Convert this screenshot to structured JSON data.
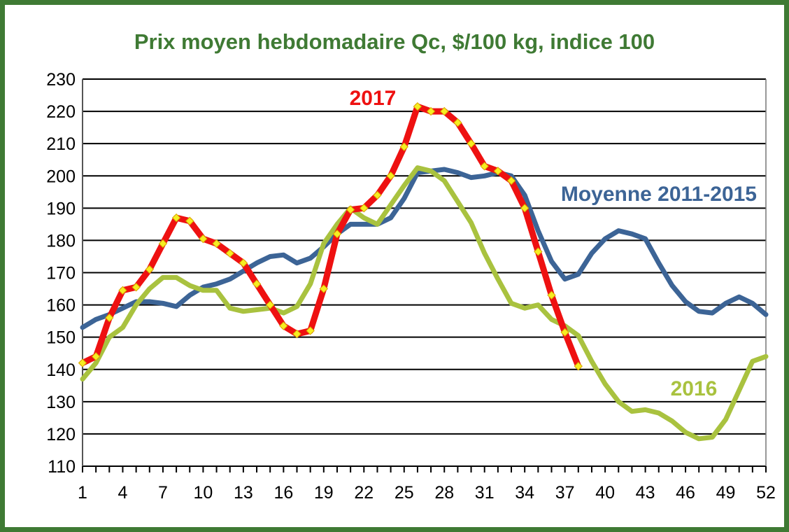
{
  "title": "Prix moyen hebdomadaire Qc, $/100 kg, indice 100",
  "colors": {
    "frame": "#3f7a34",
    "title": "#3f7a34"
  },
  "chart_data": {
    "type": "line",
    "title": "Prix moyen hebdomadaire Qc, $/100 kg, indice 100",
    "xlabel": "",
    "ylabel": "",
    "xlim": [
      1,
      52
    ],
    "ylim": [
      110,
      230
    ],
    "x_ticks": [
      1,
      4,
      7,
      10,
      13,
      16,
      19,
      22,
      25,
      28,
      31,
      34,
      37,
      40,
      43,
      46,
      49,
      52
    ],
    "y_ticks": [
      110,
      120,
      130,
      140,
      150,
      160,
      170,
      180,
      190,
      200,
      210,
      220,
      230
    ],
    "grid": "horizontal",
    "legend": "inline labels",
    "series": [
      {
        "name": "Moyenne 2011-2015",
        "color": "#3c6496",
        "marker": "none",
        "x": [
          1,
          2,
          3,
          4,
          5,
          6,
          7,
          8,
          9,
          10,
          11,
          12,
          13,
          14,
          15,
          16,
          17,
          18,
          19,
          20,
          21,
          22,
          23,
          24,
          25,
          26,
          27,
          28,
          29,
          30,
          31,
          32,
          33,
          34,
          35,
          36,
          37,
          38,
          39,
          40,
          41,
          42,
          43,
          44,
          45,
          46,
          47,
          48,
          49,
          50,
          51,
          52
        ],
        "values": [
          153,
          155.5,
          157,
          159,
          161,
          161,
          160.5,
          159.5,
          163,
          165.5,
          166.5,
          168,
          170.5,
          173,
          175,
          175.5,
          173,
          174.5,
          178,
          182,
          185,
          185,
          185,
          187,
          193,
          201,
          201.5,
          202,
          201,
          199.5,
          200,
          201,
          200,
          194,
          183,
          173.5,
          168,
          169.5,
          176,
          180.5,
          183,
          182,
          180.5,
          173,
          166,
          161,
          158,
          157.5,
          160.5,
          162.5,
          160.5,
          157
        ]
      },
      {
        "name": "2016",
        "color": "#a9c23f",
        "marker": "none",
        "x": [
          1,
          2,
          3,
          4,
          5,
          6,
          7,
          8,
          9,
          10,
          11,
          12,
          13,
          14,
          15,
          16,
          17,
          18,
          19,
          20,
          21,
          22,
          23,
          24,
          25,
          26,
          27,
          28,
          29,
          30,
          31,
          32,
          33,
          34,
          35,
          36,
          37,
          38,
          39,
          40,
          41,
          42,
          43,
          44,
          45,
          46,
          47,
          48,
          49,
          50,
          51,
          52
        ],
        "values": [
          137,
          142,
          150,
          153,
          160,
          165,
          168.5,
          168.5,
          166,
          164.5,
          164.5,
          159,
          158,
          158.5,
          159,
          157.5,
          159.5,
          166.5,
          179,
          185,
          190,
          187,
          185,
          191,
          197,
          202.5,
          201.5,
          198.5,
          192,
          185.5,
          176,
          168,
          160.5,
          159,
          160,
          155.5,
          153.5,
          150.5,
          142.5,
          135.5,
          130,
          127,
          127.5,
          126.5,
          124,
          120.5,
          118.5,
          119,
          124.5,
          133.5,
          142.5,
          144
        ]
      },
      {
        "name": "2017",
        "color": "#ee1111",
        "marker": "diamond",
        "marker_color": "#f6ee22",
        "x": [
          1,
          2,
          3,
          4,
          5,
          6,
          7,
          8,
          9,
          10,
          11,
          12,
          13,
          14,
          15,
          16,
          17,
          18,
          19,
          20,
          21,
          22,
          23,
          24,
          25,
          26,
          27,
          28,
          29,
          30,
          31,
          32,
          33,
          34,
          35,
          36,
          37,
          38
        ],
        "values": [
          142,
          144,
          156,
          164.5,
          165.5,
          171,
          179,
          187,
          186,
          180.5,
          179,
          176,
          173,
          166.5,
          160,
          153.5,
          151,
          152,
          165,
          182,
          189.5,
          190,
          194,
          200,
          209,
          221.5,
          220,
          220,
          216.5,
          210,
          203,
          201.5,
          198.5,
          190,
          176.5,
          163,
          151.5,
          141
        ]
      }
    ]
  }
}
